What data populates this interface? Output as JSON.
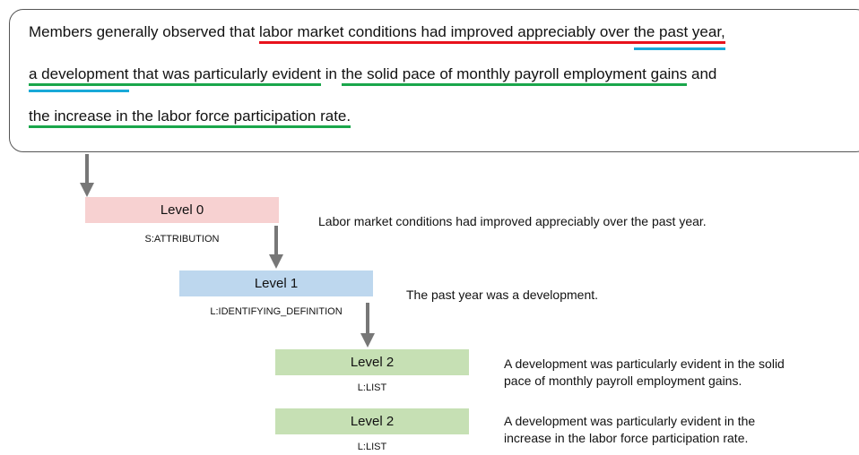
{
  "sentence": {
    "line1": [
      "Members generally observed that ",
      "labor market conditions had improved appreciably over ",
      "the past year,"
    ],
    "line2": [
      "a development",
      " that was particularly evident",
      " in ",
      "the solid pace of monthly payroll employment gains",
      " and"
    ],
    "line3": [
      "the increase in the labor force participation rate."
    ]
  },
  "nodes": [
    {
      "label": "Level 0",
      "relation": "S:ATTRIBUTION",
      "text": [
        "Labor market conditions had improved appreciably over the past year."
      ]
    },
    {
      "label": "Level 1",
      "relation": "L:IDENTIFYING_DEFINITION",
      "text": [
        "The past year was a development."
      ]
    },
    {
      "label": "Level 2",
      "relation": "L:LIST",
      "text": [
        "A development was particularly evident in the solid",
        "pace of monthly payroll employment gains."
      ]
    },
    {
      "label": "Level 2",
      "relation": "L:LIST",
      "text": [
        "A development was particularly evident in the",
        "increase in the labor force participation rate."
      ]
    }
  ]
}
